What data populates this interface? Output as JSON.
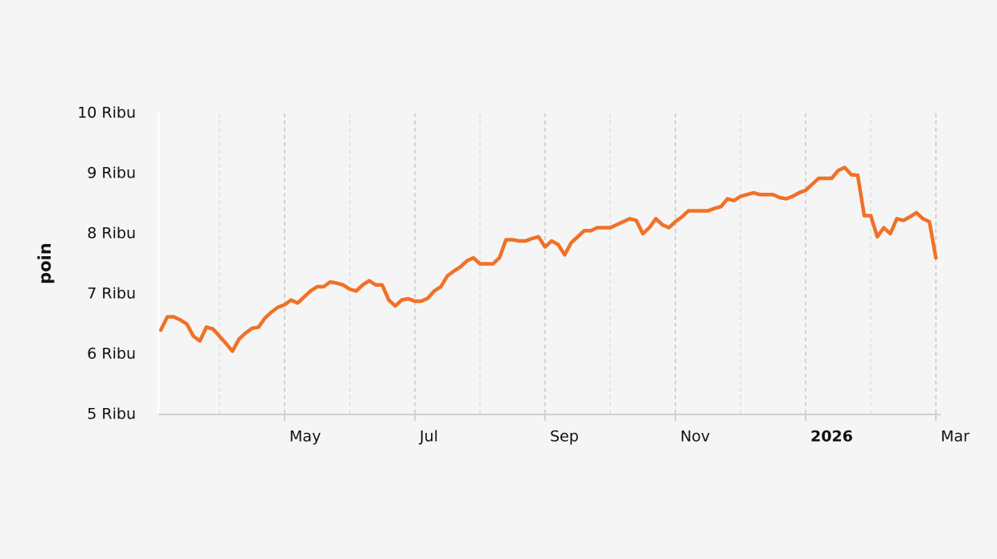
{
  "chart_data": {
    "type": "line",
    "y_label": "poin",
    "color": "#f07127",
    "grid": true,
    "categories": [
      null,
      null,
      null,
      null,
      null,
      null,
      null,
      null,
      null,
      null,
      null,
      null,
      null,
      null,
      null,
      null,
      null,
      null,
      null,
      "May",
      null,
      null,
      null,
      null,
      null,
      null,
      null,
      null,
      null,
      null,
      null,
      null,
      null,
      null,
      null,
      null,
      null,
      null,
      null,
      "Jul",
      null,
      null,
      null,
      null,
      null,
      null,
      null,
      null,
      null,
      null,
      null,
      null,
      null,
      null,
      null,
      null,
      null,
      null,
      null,
      "Sep",
      null,
      null,
      null,
      null,
      null,
      null,
      null,
      null,
      null,
      null,
      null,
      null,
      null,
      null,
      null,
      null,
      null,
      null,
      null,
      "Nov",
      null,
      null,
      null,
      null,
      null,
      null,
      null,
      null,
      null,
      null,
      null,
      null,
      null,
      null,
      null,
      null,
      null,
      null,
      null,
      "2026",
      null,
      null,
      null,
      null,
      null,
      null,
      null,
      null,
      null,
      null,
      null,
      null,
      null,
      null,
      null,
      null,
      null,
      null,
      null,
      "Mar"
    ],
    "values": [
      6400,
      6620,
      6620,
      6570,
      6500,
      6300,
      6220,
      6450,
      6420,
      6300,
      6180,
      6050,
      6250,
      6350,
      6430,
      6450,
      6600,
      6700,
      6780,
      6820,
      6900,
      6850,
      6950,
      7050,
      7120,
      7120,
      7200,
      7180,
      7150,
      7080,
      7050,
      7150,
      7220,
      7150,
      7150,
      6900,
      6800,
      6900,
      6920,
      6880,
      6880,
      6930,
      7050,
      7120,
      7300,
      7380,
      7450,
      7550,
      7600,
      7500,
      7500,
      7500,
      7600,
      7900,
      7900,
      7880,
      7880,
      7920,
      7950,
      7780,
      7880,
      7820,
      7650,
      7850,
      7950,
      8050,
      8050,
      8100,
      8100,
      8100,
      8150,
      8200,
      8250,
      8220,
      8000,
      8100,
      8250,
      8150,
      8100,
      8200,
      8280,
      8380,
      8380,
      8380,
      8380,
      8420,
      8450,
      8580,
      8550,
      8620,
      8650,
      8680,
      8650,
      8650,
      8650,
      8600,
      8580,
      8620,
      8680,
      8720,
      8820,
      8920,
      8920,
      8920,
      9050,
      9100,
      8980,
      8970,
      8300,
      8300,
      7950,
      8100,
      8000,
      8250,
      8220,
      8280,
      8350,
      8250,
      8200,
      7600
    ],
    "ylim": [
      5000,
      10000
    ],
    "yticks": [
      {
        "value": 5000,
        "label": "5 Ribu"
      },
      {
        "value": 6000,
        "label": "6 Ribu"
      },
      {
        "value": 7000,
        "label": "7 Ribu"
      },
      {
        "value": 8000,
        "label": "8 Ribu"
      },
      {
        "value": 9000,
        "label": "9 Ribu"
      },
      {
        "value": 10000,
        "label": "10 Ribu"
      }
    ]
  }
}
